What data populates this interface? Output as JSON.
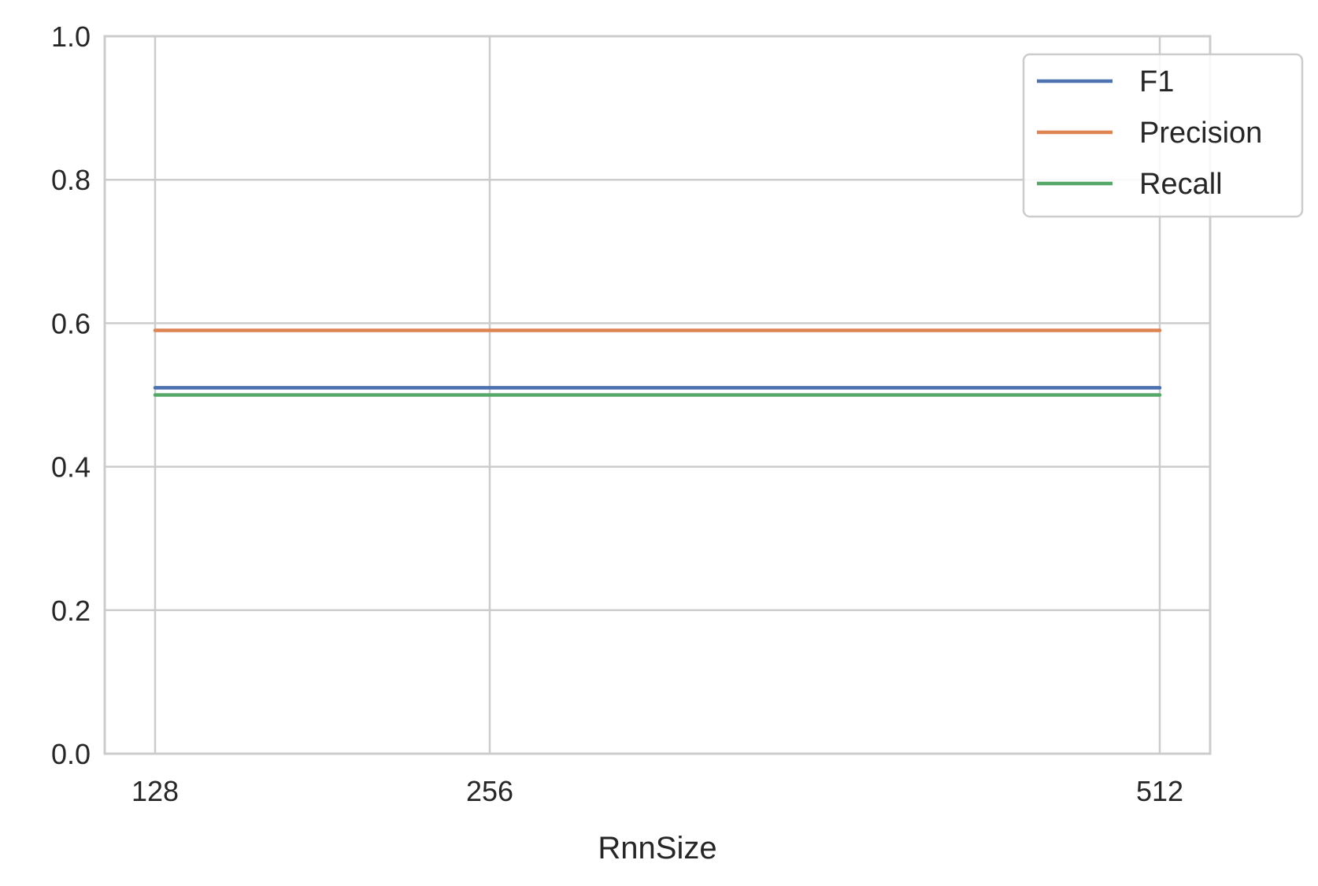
{
  "chart_data": {
    "type": "line",
    "x": [
      128,
      256,
      512
    ],
    "x_tick_labels": [
      "128",
      "256",
      "512"
    ],
    "y_tick_labels": [
      "0.0",
      "0.2",
      "0.4",
      "0.6",
      "0.8",
      "1.0"
    ],
    "ylim": [
      0.0,
      1.0
    ],
    "xlabel": "RnnSize",
    "ylabel": "",
    "grid": true,
    "legend_position": "upper-right",
    "series": [
      {
        "name": "F1",
        "values": [
          0.51,
          0.51,
          0.51
        ],
        "color": "#4c72b0"
      },
      {
        "name": "Precision",
        "values": [
          0.59,
          0.59,
          0.59
        ],
        "color": "#dd8452"
      },
      {
        "name": "Recall",
        "values": [
          0.5,
          0.5,
          0.5
        ],
        "color": "#55a868"
      }
    ]
  }
}
